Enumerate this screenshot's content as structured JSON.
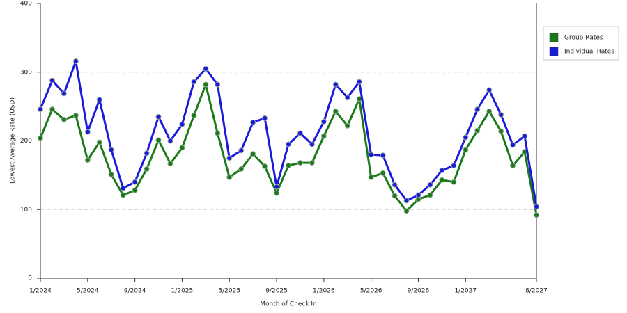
{
  "chart_data": {
    "type": "line",
    "x_label": "Month of Check In",
    "y_label": "Lowest Average Rate (USD)",
    "categories": [
      "1/2024",
      null,
      null,
      null,
      "5/2024",
      null,
      null,
      null,
      "9/2024",
      null,
      null,
      null,
      "1/2025",
      null,
      null,
      null,
      "5/2025",
      null,
      null,
      null,
      "9/2025",
      null,
      null,
      null,
      "1/2026",
      null,
      null,
      null,
      "5/2026",
      null,
      null,
      null,
      "9/2026",
      null,
      null,
      null,
      "1/2027",
      null,
      null,
      null,
      null,
      null,
      "8/2027"
    ],
    "series": [
      {
        "name": "Group Rates",
        "color": "#1a7a1a",
        "values": [
          204,
          246,
          231,
          237,
          172,
          198,
          151,
          121,
          128,
          159,
          201,
          167,
          190,
          237,
          282,
          211,
          147,
          159,
          181,
          163,
          124,
          164,
          168,
          168,
          207,
          243,
          222,
          261,
          147,
          153,
          120,
          98,
          115,
          121,
          143,
          140,
          187,
          215,
          243,
          214,
          164,
          184,
          92
        ]
      },
      {
        "name": "Individual Rates",
        "color": "#1a1adb",
        "values": [
          246,
          288,
          269,
          316,
          213,
          260,
          187,
          131,
          140,
          182,
          235,
          200,
          224,
          286,
          305,
          282,
          175,
          186,
          227,
          233,
          133,
          195,
          211,
          195,
          228,
          282,
          263,
          286,
          180,
          179,
          136,
          113,
          121,
          136,
          157,
          164,
          205,
          246,
          274,
          238,
          194,
          207,
          104
        ]
      }
    ],
    "ylim": [
      0,
      400
    ],
    "yticks": [
      0,
      100,
      200,
      300,
      400
    ],
    "grid": true
  }
}
